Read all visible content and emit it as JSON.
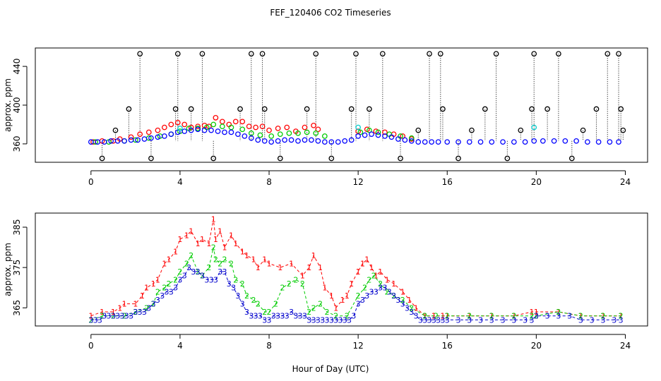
{
  "title": "FEF_120406  CO2 Timeseries",
  "xlabel": "Hour of Day (UTC)",
  "chart_data": [
    {
      "type": "scatter",
      "panel": "top",
      "ylabel": "approx. ppm",
      "xlim": [
        -2.5,
        25
      ],
      "ylim": [
        341,
        459
      ],
      "xticks": [
        0,
        4,
        8,
        12,
        16,
        20,
        24
      ],
      "yticks": [
        360,
        400,
        440
      ],
      "series": [
        {
          "name": "red",
          "color": "#ff0000",
          "x": [
            0.1,
            0.5,
            1.0,
            1.3,
            1.8,
            2.2,
            2.6,
            3.0,
            3.3,
            3.6,
            3.9,
            4.2,
            4.5,
            4.8,
            5.1,
            5.3,
            5.6,
            5.9,
            6.2,
            6.5,
            6.8,
            7.1,
            7.4,
            7.7,
            8.0,
            8.4,
            8.8,
            9.2,
            9.6,
            10.0,
            10.2,
            12.0,
            12.4,
            12.8,
            13.2,
            13.6,
            14.0,
            14.4
          ],
          "y": [
            362,
            363,
            363,
            365,
            367,
            370,
            372,
            374,
            377,
            380,
            382,
            380,
            377,
            378,
            379,
            378,
            387,
            383,
            380,
            383,
            383,
            378,
            377,
            378,
            374,
            376,
            377,
            373,
            377,
            379,
            375,
            373,
            375,
            373,
            372,
            370,
            368,
            365
          ]
        },
        {
          "name": "green",
          "color": "#00cc00",
          "x": [
            0.2,
            0.8,
            1.5,
            2.0,
            2.6,
            3.1,
            3.6,
            4.0,
            4.4,
            4.8,
            5.2,
            5.5,
            5.9,
            6.3,
            6.8,
            7.2,
            7.6,
            8.1,
            8.5,
            8.9,
            9.3,
            9.7,
            10.1,
            10.5,
            12.1,
            12.5,
            12.9,
            13.4,
            13.9,
            14.4
          ],
          "y": [
            362,
            362,
            363,
            364,
            366,
            368,
            370,
            373,
            376,
            376,
            377,
            380,
            378,
            377,
            375,
            371,
            369,
            368,
            370,
            371,
            371,
            372,
            371,
            368,
            372,
            374,
            372,
            370,
            368,
            366
          ]
        },
        {
          "name": "blue",
          "color": "#0000ff",
          "x": [
            0.0,
            0.3,
            0.6,
            0.9,
            1.2,
            1.5,
            1.8,
            2.1,
            2.4,
            2.7,
            3.0,
            3.3,
            3.6,
            3.9,
            4.2,
            4.5,
            4.8,
            5.1,
            5.4,
            5.7,
            6.0,
            6.3,
            6.6,
            6.9,
            7.2,
            7.5,
            7.8,
            8.1,
            8.4,
            8.7,
            9.0,
            9.3,
            9.6,
            9.9,
            10.2,
            10.5,
            10.8,
            11.1,
            11.4,
            11.7,
            12.0,
            12.3,
            12.6,
            12.9,
            13.2,
            13.5,
            13.8,
            14.1,
            14.4,
            14.7,
            15.0,
            15.3,
            15.6,
            16.0,
            16.5,
            17.0,
            17.5,
            18.0,
            18.5,
            19.0,
            19.5,
            19.9,
            20.3,
            20.8,
            21.3,
            21.8,
            22.3,
            22.8,
            23.3,
            23.7
          ],
          "y": [
            362,
            362,
            362,
            363,
            363,
            363,
            364,
            364,
            365,
            366,
            367,
            368,
            370,
            372,
            373,
            374,
            375,
            374,
            374,
            373,
            372,
            372,
            370,
            368,
            366,
            364,
            363,
            362,
            363,
            364,
            364,
            363,
            364,
            364,
            363,
            362,
            362,
            362,
            363,
            364,
            368,
            369,
            370,
            369,
            368,
            367,
            365,
            364,
            363,
            362,
            362,
            362,
            362,
            362,
            362,
            362,
            362,
            362,
            362,
            362,
            362,
            363,
            363,
            363,
            363,
            363,
            362,
            362,
            362,
            362
          ]
        },
        {
          "name": "cyan",
          "color": "#00cccc",
          "x": [
            4.0,
            12.0,
            19.9
          ],
          "y": [
            376,
            377,
            377
          ]
        },
        {
          "name": "spikes",
          "color": "#000000",
          "x": [
            0.5,
            1.1,
            1.7,
            2.2,
            2.7,
            3.8,
            3.9,
            4.5,
            5.0,
            5.5,
            6.7,
            7.2,
            7.7,
            7.8,
            8.5,
            9.7,
            10.1,
            10.8,
            11.7,
            11.9,
            12.5,
            13.1,
            13.9,
            14.7,
            15.2,
            15.7,
            15.8,
            16.5,
            17.1,
            17.7,
            18.2,
            18.7,
            19.3,
            19.8,
            19.9,
            20.5,
            21.0,
            21.6,
            22.1,
            22.7,
            23.2,
            23.7,
            23.8,
            23.9
          ],
          "y": [
            345,
            374,
            396,
            453,
            345,
            396,
            453,
            396,
            453,
            345,
            396,
            453,
            453,
            396,
            345,
            396,
            453,
            345,
            396,
            453,
            396,
            453,
            345,
            374,
            453,
            453,
            396,
            345,
            374,
            396,
            453,
            345,
            374,
            396,
            453,
            396,
            453,
            345,
            374,
            396,
            453,
            453,
            396,
            374
          ]
        }
      ]
    },
    {
      "type": "line",
      "panel": "bottom",
      "ylabel": "approx. ppm",
      "xlim": [
        -2.5,
        25
      ],
      "ylim": [
        360.5,
        388.5
      ],
      "xticks": [
        0,
        4,
        8,
        12,
        16,
        20,
        24
      ],
      "yticks": [
        365,
        375,
        385
      ],
      "ytick_labels": [
        "365",
        "375",
        "385"
      ],
      "series": [
        {
          "name": "1",
          "marker": "1",
          "color": "#ff0000",
          "x": [
            0.0,
            0.5,
            1.0,
            1.3,
            1.5,
            2.0,
            2.3,
            2.5,
            2.8,
            3.0,
            3.3,
            3.5,
            3.8,
            4.0,
            4.3,
            4.5,
            4.8,
            5.0,
            5.3,
            5.5,
            5.6,
            5.8,
            6.0,
            6.3,
            6.5,
            6.8,
            7.0,
            7.3,
            7.5,
            7.8,
            8.0,
            8.5,
            9.0,
            9.5,
            9.8,
            10.0,
            10.3,
            10.5,
            10.8,
            11.0,
            11.3,
            11.5,
            11.7,
            12.0,
            12.2,
            12.4,
            12.6,
            12.8,
            13.0,
            13.3,
            13.6,
            14.0,
            14.3,
            14.6,
            15.0,
            15.4,
            15.8,
            16.0,
            17.0,
            18.0,
            19.0,
            19.8,
            20.0,
            21.0,
            22.0,
            23.0,
            23.8
          ],
          "y": [
            363,
            364,
            364,
            365,
            366,
            366,
            368,
            370,
            371,
            372,
            376,
            377,
            379,
            382,
            383,
            384,
            381,
            382,
            381,
            387,
            382,
            384,
            380,
            383,
            381,
            379,
            378,
            377,
            375,
            377,
            376,
            375,
            376,
            373,
            375,
            378,
            375,
            370,
            368,
            365,
            367,
            368,
            371,
            374,
            376,
            377,
            375,
            373,
            374,
            372,
            371,
            369,
            367,
            365,
            363,
            363,
            363,
            363,
            363,
            363,
            363,
            364,
            364,
            364,
            363,
            363,
            363
          ]
        },
        {
          "name": "2",
          "marker": "2",
          "color": "#00cc00",
          "x": [
            0.0,
            0.5,
            1.0,
            1.5,
            2.0,
            2.5,
            2.8,
            3.0,
            3.3,
            3.5,
            3.8,
            4.0,
            4.3,
            4.5,
            4.8,
            5.0,
            5.3,
            5.5,
            5.6,
            5.8,
            6.0,
            6.3,
            6.5,
            6.8,
            7.0,
            7.3,
            7.5,
            7.8,
            8.0,
            8.3,
            8.6,
            8.9,
            9.2,
            9.5,
            9.8,
            10.0,
            10.3,
            10.6,
            11.0,
            11.5,
            12.0,
            12.3,
            12.5,
            12.7,
            13.0,
            13.3,
            13.6,
            14.0,
            14.4,
            15.0,
            15.5,
            16.0,
            17.0,
            18.0,
            19.0,
            19.8,
            20.0,
            21.0,
            22.0,
            23.0,
            23.8
          ],
          "y": [
            362,
            363,
            363,
            363,
            364,
            365,
            366,
            369,
            370,
            371,
            372,
            374,
            376,
            378,
            374,
            373,
            375,
            380,
            377,
            376,
            377,
            376,
            372,
            371,
            368,
            367,
            366,
            364,
            364,
            366,
            370,
            371,
            372,
            371,
            364,
            365,
            366,
            364,
            363,
            363,
            368,
            370,
            372,
            373,
            371,
            369,
            368,
            367,
            365,
            363,
            363,
            363,
            363,
            363,
            363,
            363,
            363,
            364,
            363,
            363,
            363
          ]
        },
        {
          "name": "3",
          "marker": "3",
          "color": "#0000cc",
          "x": [
            0.0,
            0.2,
            0.4,
            0.6,
            0.8,
            1.0,
            1.2,
            1.4,
            1.6,
            1.8,
            2.0,
            2.2,
            2.4,
            2.6,
            2.8,
            3.0,
            3.2,
            3.4,
            3.6,
            3.8,
            4.0,
            4.2,
            4.4,
            4.6,
            4.8,
            5.0,
            5.2,
            5.4,
            5.6,
            5.8,
            6.0,
            6.2,
            6.4,
            6.6,
            6.8,
            7.0,
            7.2,
            7.4,
            7.6,
            7.8,
            8.0,
            8.2,
            8.4,
            8.6,
            8.8,
            9.0,
            9.2,
            9.4,
            9.6,
            9.8,
            10.0,
            10.2,
            10.4,
            10.6,
            10.8,
            11.0,
            11.2,
            11.4,
            11.6,
            11.8,
            12.0,
            12.2,
            12.4,
            12.6,
            12.8,
            13.0,
            13.2,
            13.4,
            13.6,
            13.8,
            14.0,
            14.2,
            14.4,
            14.6,
            14.8,
            15.0,
            15.2,
            15.4,
            15.6,
            15.8,
            16.0,
            16.5,
            17.0,
            17.5,
            18.0,
            18.5,
            19.0,
            19.5,
            19.8,
            20.0,
            20.5,
            21.0,
            21.5,
            22.0,
            22.5,
            23.0,
            23.5,
            23.8
          ],
          "y": [
            362,
            362,
            362,
            363,
            363,
            363,
            363,
            363,
            363,
            363,
            364,
            364,
            364,
            365,
            366,
            367,
            368,
            369,
            369,
            370,
            372,
            373,
            375,
            374,
            374,
            373,
            372,
            372,
            372,
            374,
            374,
            371,
            370,
            368,
            366,
            364,
            363,
            363,
            363,
            362,
            362,
            363,
            363,
            363,
            363,
            364,
            363,
            363,
            363,
            362,
            362,
            362,
            362,
            362,
            362,
            362,
            362,
            362,
            362,
            363,
            366,
            367,
            368,
            369,
            369,
            370,
            370,
            369,
            368,
            367,
            366,
            365,
            364,
            363,
            362,
            362,
            362,
            362,
            362,
            362,
            362,
            362,
            362,
            362,
            362,
            362,
            362,
            362,
            362,
            363,
            363,
            363,
            363,
            362,
            362,
            362,
            362,
            362
          ]
        }
      ]
    }
  ]
}
